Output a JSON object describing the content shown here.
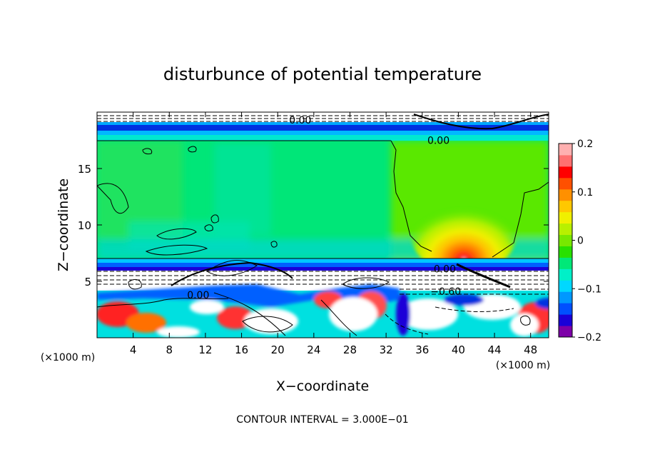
{
  "chart_data": {
    "type": "heatmap",
    "title": "disturbunce of potential temperature",
    "xlabel": "X−coordinate",
    "ylabel": "Z−coordinate",
    "x_unit": "(×1000 m)",
    "x_unit_right": "(×1000 m)",
    "xlim": [
      0,
      50
    ],
    "ylim": [
      0,
      20
    ],
    "x_ticks": [
      4,
      8,
      12,
      16,
      20,
      24,
      28,
      32,
      36,
      40,
      44,
      48
    ],
    "y_ticks": [
      5,
      10,
      15
    ],
    "colorbar": {
      "ticks": [
        "0.2",
        "0.1",
        "0",
        "−0.1",
        "−0.2"
      ],
      "tick_values": [
        0.2,
        0.1,
        0,
        -0.1,
        -0.2
      ],
      "range": [
        -0.2,
        0.2
      ],
      "colors": [
        "#7d00a8",
        "#1a00d8",
        "#0050ff",
        "#0098ff",
        "#00d8ff",
        "#00f0c8",
        "#00e878",
        "#28e000",
        "#78e800",
        "#b8f000",
        "#f0f000",
        "#ffc800",
        "#ff9000",
        "#ff5000",
        "#ff0000",
        "#ff7070",
        "#ffb0b0"
      ]
    },
    "contour_labels": [
      {
        "text": "0.00",
        "x": 22.5,
        "z": 19.3
      },
      {
        "text": "0.00",
        "x": 37.8,
        "z": 17.5
      },
      {
        "text": "0.00",
        "x": 38.5,
        "z": 6.1
      },
      {
        "text": "0.00",
        "x": 11.2,
        "z": 3.8
      },
      {
        "text": "−0.60",
        "x": 38.6,
        "z": 4.1
      }
    ],
    "footer": "CONTOUR INTERVAL = 3.000E−01"
  }
}
